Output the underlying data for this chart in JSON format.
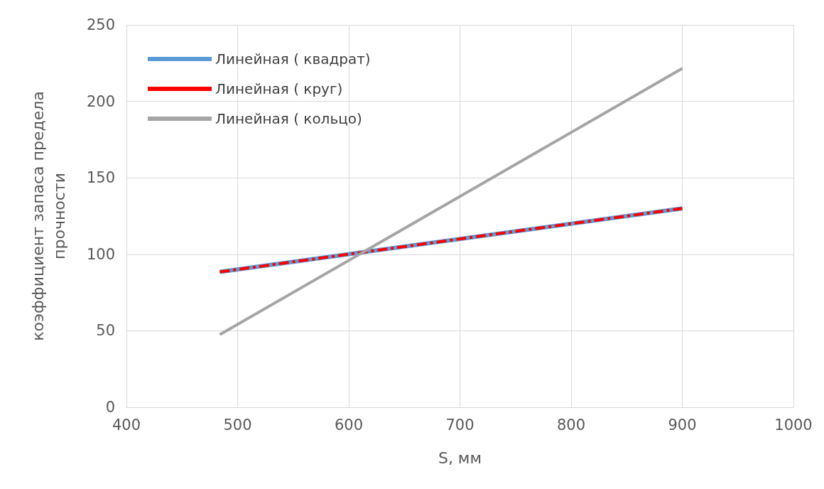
{
  "chart_data": {
    "type": "line",
    "xlabel": "S, мм",
    "ylabel": "коэффициент запаса предела\nпрочности",
    "xlim": [
      400,
      1000
    ],
    "xticks": [
      400,
      500,
      600,
      700,
      800,
      900,
      1000
    ],
    "ylim": [
      0,
      250
    ],
    "yticks": [
      0,
      50,
      100,
      150,
      200,
      250
    ],
    "grid": true,
    "legend": "top left",
    "marker": "none",
    "x": [
      484,
      900
    ],
    "series": [
      {
        "name": "Линейная ( квадрат)",
        "color": "#5b9bd5",
        "values": [
          88.5,
          130
        ],
        "line_style": "solid"
      },
      {
        "name": "Линейная ( круг)",
        "color": "#ff0000",
        "values": [
          88.5,
          130
        ],
        "line_style": "dashed"
      },
      {
        "name": "Линейная ( кольцо)",
        "color": "#a5a5a5",
        "values": [
          47.5,
          221.5
        ],
        "line_style": "solid"
      }
    ]
  }
}
